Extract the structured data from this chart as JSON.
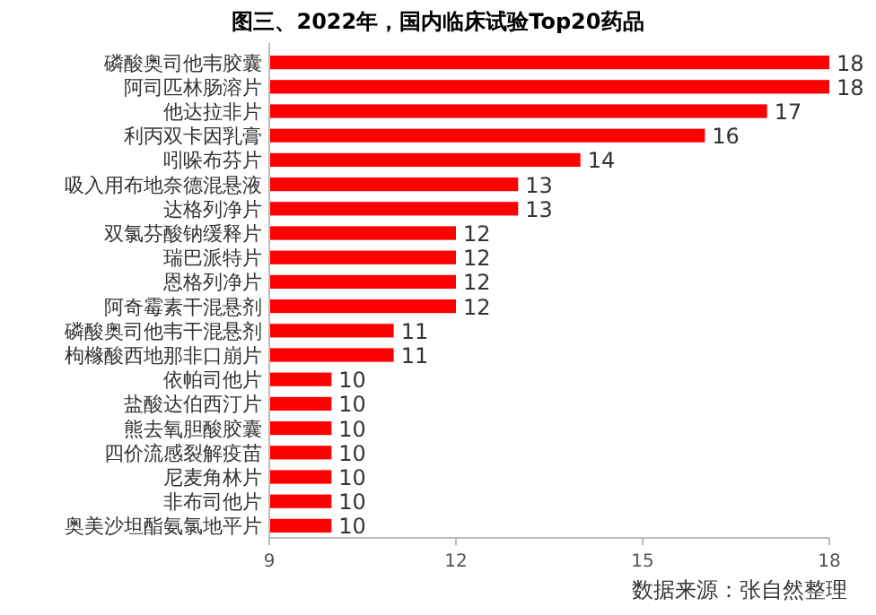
{
  "chart_data": {
    "type": "bar",
    "orientation": "horizontal",
    "title": "图三、2022年，国内临床试验Top20药品",
    "categories": [
      "磷酸奥司他韦胶囊",
      "阿司匹林肠溶片",
      "他达拉非片",
      "利丙双卡因乳膏",
      "吲哚布芬片",
      "吸入用布地奈德混悬液",
      "达格列净片",
      "双氯芬酸钠缓释片",
      "瑞巴派特片",
      "恩格列净片",
      "阿奇霉素干混悬剂",
      "磷酸奥司他韦干混悬剂",
      "枸橼酸西地那非口崩片",
      "依帕司他片",
      "盐酸达伯西汀片",
      "熊去氧胆酸胶囊",
      "四价流感裂解疫苗",
      "尼麦角林片",
      "非布司他片",
      "奥美沙坦酯氨氯地平片"
    ],
    "values": [
      18,
      18,
      17,
      16,
      14,
      13,
      13,
      12,
      12,
      12,
      12,
      11,
      11,
      10,
      10,
      10,
      10,
      10,
      10,
      10
    ],
    "color": "#ff0000",
    "xlim": [
      9,
      18
    ],
    "xticks": [
      9,
      12,
      15,
      18
    ],
    "data_labels": true,
    "grid": false,
    "annotations": [
      "数据来源：张自然整理"
    ]
  }
}
